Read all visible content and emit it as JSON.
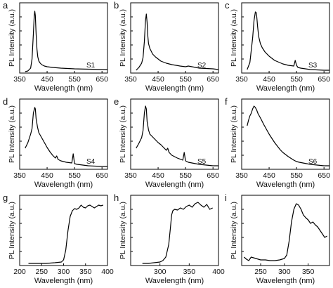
{
  "chart_data": [
    {
      "letter": "a",
      "type": "line",
      "sample_label": "S1",
      "xlabel": "Wavelength (nm)",
      "ylabel": "PL Intensity (a.u.)",
      "xlim": [
        350,
        670
      ],
      "ylim": [
        0,
        1
      ],
      "xticks": [
        350,
        450,
        550,
        650
      ],
      "tick_labels": [
        "350",
        "450",
        "550",
        "650"
      ],
      "y_tick_labels": false,
      "x": [
        370,
        380,
        390,
        395,
        400,
        403,
        405,
        407,
        410,
        413,
        416,
        420,
        425,
        430,
        440,
        450,
        470,
        500,
        550,
        600,
        650,
        670
      ],
      "y": [
        0.02,
        0.03,
        0.07,
        0.2,
        0.56,
        0.81,
        0.88,
        0.82,
        0.56,
        0.34,
        0.23,
        0.17,
        0.14,
        0.12,
        0.1,
        0.09,
        0.08,
        0.07,
        0.06,
        0.055,
        0.05,
        0.05
      ]
    },
    {
      "letter": "b",
      "type": "line",
      "sample_label": "S2",
      "xlabel": "Wavelength (nm)",
      "ylabel": "PL Intensity (a.u.)",
      "xlim": [
        350,
        670
      ],
      "ylim": [
        0,
        1
      ],
      "xticks": [
        350,
        450,
        550,
        650
      ],
      "tick_labels": [
        "350",
        "450",
        "550",
        "650"
      ],
      "y_tick_labels": false,
      "x": [
        370,
        380,
        390,
        395,
        400,
        404,
        407,
        410,
        412,
        415,
        420,
        425,
        430,
        440,
        450,
        460,
        480,
        500,
        530,
        550,
        560,
        600,
        650,
        670
      ],
      "y": [
        0.04,
        0.08,
        0.14,
        0.22,
        0.45,
        0.75,
        0.84,
        0.72,
        0.55,
        0.42,
        0.35,
        0.31,
        0.27,
        0.23,
        0.2,
        0.17,
        0.14,
        0.12,
        0.1,
        0.09,
        0.1,
        0.07,
        0.06,
        0.05
      ]
    },
    {
      "letter": "c",
      "type": "line",
      "sample_label": "S3",
      "xlabel": "Wavelength (nm)",
      "ylabel": "PL Intensity (a.u.)",
      "xlim": [
        350,
        670
      ],
      "ylim": [
        0,
        1
      ],
      "xticks": [
        350,
        450,
        550,
        650
      ],
      "tick_labels": [
        "350",
        "450",
        "550",
        "650"
      ],
      "y_tick_labels": false,
      "x": [
        370,
        380,
        390,
        395,
        400,
        403,
        405,
        408,
        412,
        418,
        425,
        435,
        450,
        470,
        500,
        520,
        540,
        545,
        550,
        555,
        565,
        600,
        650,
        670
      ],
      "y": [
        0.05,
        0.15,
        0.5,
        0.75,
        0.87,
        0.86,
        0.8,
        0.66,
        0.52,
        0.42,
        0.36,
        0.3,
        0.24,
        0.18,
        0.13,
        0.11,
        0.1,
        0.18,
        0.11,
        0.08,
        0.07,
        0.05,
        0.04,
        0.04
      ]
    },
    {
      "letter": "d",
      "type": "line",
      "sample_label": "S4",
      "xlabel": "Wavelength (nm)",
      "ylabel": "PL Intensity (a.u.)",
      "xlim": [
        350,
        670
      ],
      "ylim": [
        0,
        1
      ],
      "xticks": [
        350,
        450,
        550,
        650
      ],
      "tick_labels": [
        "350",
        "450",
        "550",
        "650"
      ],
      "y_tick_labels": false,
      "x": [
        370,
        380,
        390,
        395,
        400,
        405,
        407,
        410,
        415,
        420,
        430,
        440,
        450,
        460,
        470,
        480,
        485,
        490,
        500,
        520,
        540,
        545,
        550,
        560,
        600,
        650,
        670
      ],
      "y": [
        0.3,
        0.38,
        0.5,
        0.58,
        0.8,
        0.88,
        0.86,
        0.72,
        0.6,
        0.52,
        0.45,
        0.38,
        0.31,
        0.25,
        0.2,
        0.16,
        0.19,
        0.14,
        0.12,
        0.1,
        0.09,
        0.22,
        0.08,
        0.07,
        0.05,
        0.04,
        0.04
      ]
    },
    {
      "letter": "e",
      "type": "line",
      "sample_label": "S5",
      "xlabel": "Wavelength (nm)",
      "ylabel": "PL Intensity (a.u.)",
      "xlim": [
        350,
        670
      ],
      "ylim": [
        0,
        1
      ],
      "xticks": [
        350,
        450,
        550,
        650
      ],
      "tick_labels": [
        "350",
        "450",
        "550",
        "650"
      ],
      "y_tick_labels": false,
      "x": [
        370,
        380,
        390,
        395,
        400,
        404,
        407,
        410,
        415,
        420,
        430,
        440,
        450,
        460,
        470,
        480,
        485,
        490,
        500,
        520,
        540,
        545,
        550,
        560,
        600,
        650,
        670
      ],
      "y": [
        0.3,
        0.37,
        0.45,
        0.55,
        0.8,
        0.9,
        0.86,
        0.68,
        0.56,
        0.5,
        0.46,
        0.42,
        0.38,
        0.35,
        0.31,
        0.27,
        0.3,
        0.24,
        0.2,
        0.16,
        0.13,
        0.24,
        0.12,
        0.1,
        0.07,
        0.05,
        0.05
      ]
    },
    {
      "letter": "f",
      "type": "line",
      "sample_label": "S6",
      "xlabel": "Wavelength (nm)",
      "ylabel": "PL Intensity (a.u.)",
      "xlim": [
        350,
        670
      ],
      "ylim": [
        0,
        1
      ],
      "xticks": [
        350,
        450,
        550,
        650
      ],
      "tick_labels": [
        "350",
        "450",
        "550",
        "650"
      ],
      "y_tick_labels": false,
      "x": [
        370,
        375,
        380,
        385,
        390,
        395,
        400,
        405,
        410,
        420,
        430,
        440,
        450,
        460,
        470,
        480,
        490,
        500,
        520,
        540,
        550,
        560,
        600,
        650,
        670
      ],
      "y": [
        0.62,
        0.7,
        0.76,
        0.8,
        0.86,
        0.9,
        0.88,
        0.84,
        0.79,
        0.72,
        0.64,
        0.57,
        0.5,
        0.44,
        0.38,
        0.33,
        0.28,
        0.24,
        0.18,
        0.13,
        0.11,
        0.1,
        0.07,
        0.05,
        0.05
      ]
    },
    {
      "letter": "g",
      "type": "line",
      "xlabel": "Wavelength (nm)",
      "ylabel": "PL Intensity (a.u.)",
      "xlim": [
        200,
        400
      ],
      "ylim": [
        0,
        1
      ],
      "xticks": [
        200,
        250,
        300,
        350,
        400
      ],
      "tick_labels": [
        "200",
        "250",
        "300",
        "350",
        "400"
      ],
      "y_tick_labels": false,
      "x": [
        220,
        240,
        260,
        280,
        295,
        300,
        305,
        310,
        315,
        320,
        325,
        330,
        335,
        340,
        345,
        350,
        355,
        360,
        365,
        370,
        375,
        380,
        385,
        390
      ],
      "y": [
        0.03,
        0.03,
        0.03,
        0.04,
        0.05,
        0.08,
        0.22,
        0.5,
        0.7,
        0.78,
        0.81,
        0.8,
        0.82,
        0.86,
        0.83,
        0.82,
        0.85,
        0.86,
        0.84,
        0.82,
        0.84,
        0.86,
        0.85,
        0.86
      ]
    },
    {
      "letter": "h",
      "type": "line",
      "xlabel": "Wavelength (nm)",
      "ylabel": "PL Intensity (a.u.)",
      "xlim": [
        250,
        400
      ],
      "ylim": [
        0,
        1
      ],
      "xticks": [
        300,
        350,
        400
      ],
      "tick_labels": [
        "300",
        "350",
        "400"
      ],
      "y_tick_labels": false,
      "x": [
        270,
        280,
        290,
        300,
        305,
        310,
        315,
        318,
        320,
        322,
        325,
        330,
        335,
        340,
        345,
        350,
        355,
        360,
        365,
        370,
        375,
        380,
        385,
        390
      ],
      "y": [
        0.03,
        0.03,
        0.04,
        0.05,
        0.07,
        0.12,
        0.3,
        0.55,
        0.72,
        0.78,
        0.8,
        0.79,
        0.82,
        0.8,
        0.84,
        0.86,
        0.83,
        0.88,
        0.9,
        0.86,
        0.83,
        0.87,
        0.8,
        0.82
      ]
    },
    {
      "letter": "i",
      "type": "line",
      "xlabel": "Wavelength (nm)",
      "ylabel": "PL Intensity (a.u.)",
      "xlim": [
        210,
        395
      ],
      "ylim": [
        0,
        1
      ],
      "xticks": [
        250,
        300,
        350
      ],
      "tick_labels": [
        "250",
        "300",
        "350"
      ],
      "y_tick_labels": false,
      "x": [
        215,
        220,
        225,
        230,
        240,
        250,
        260,
        270,
        280,
        290,
        300,
        305,
        310,
        315,
        320,
        325,
        330,
        335,
        340,
        345,
        350,
        355,
        360,
        365,
        370,
        375,
        380,
        385,
        390
      ],
      "y": [
        0.12,
        0.09,
        0.07,
        0.12,
        0.1,
        0.08,
        0.08,
        0.07,
        0.07,
        0.08,
        0.1,
        0.15,
        0.35,
        0.62,
        0.8,
        0.88,
        0.86,
        0.8,
        0.72,
        0.68,
        0.65,
        0.6,
        0.62,
        0.58,
        0.55,
        0.5,
        0.45,
        0.4,
        0.42
      ]
    }
  ]
}
